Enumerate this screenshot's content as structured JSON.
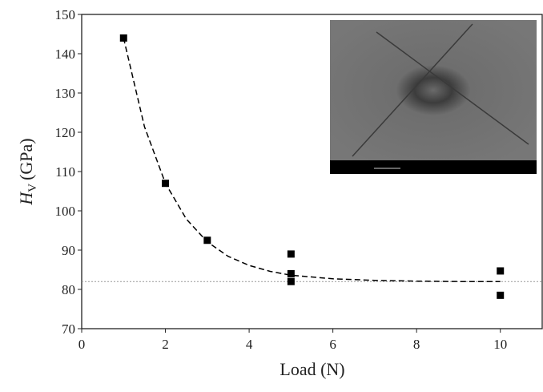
{
  "chart_data": {
    "type": "scatter",
    "xlabel": "Load (N)",
    "ylabel": "H",
    "ylabel_subscript": "V",
    "ylabel_unit": "(GPa)",
    "xlim": [
      0,
      11
    ],
    "ylim": [
      70,
      150
    ],
    "xticks": [
      0,
      2,
      4,
      6,
      8,
      10
    ],
    "yticks": [
      70,
      80,
      90,
      100,
      110,
      120,
      130,
      140,
      150
    ],
    "series": [
      {
        "kind": "points",
        "color": "#000000",
        "x": [
          1,
          2,
          3,
          5,
          5,
          5,
          10,
          10
        ],
        "values": [
          144,
          107,
          92.5,
          89,
          84,
          82,
          84.7,
          78.5
        ]
      },
      {
        "kind": "dashed-line",
        "color": "#000000",
        "x": [
          1,
          1.5,
          2,
          2.5,
          3,
          3.5,
          4,
          4.5,
          5,
          6,
          7,
          8,
          9,
          10
        ],
        "values": [
          144,
          121.4,
          107,
          97.9,
          92.1,
          88.4,
          86.1,
          84.6,
          83.6,
          82.7,
          82.3,
          82.1,
          82,
          82
        ]
      }
    ],
    "reference_line": 82,
    "reference_color": "#999999"
  }
}
